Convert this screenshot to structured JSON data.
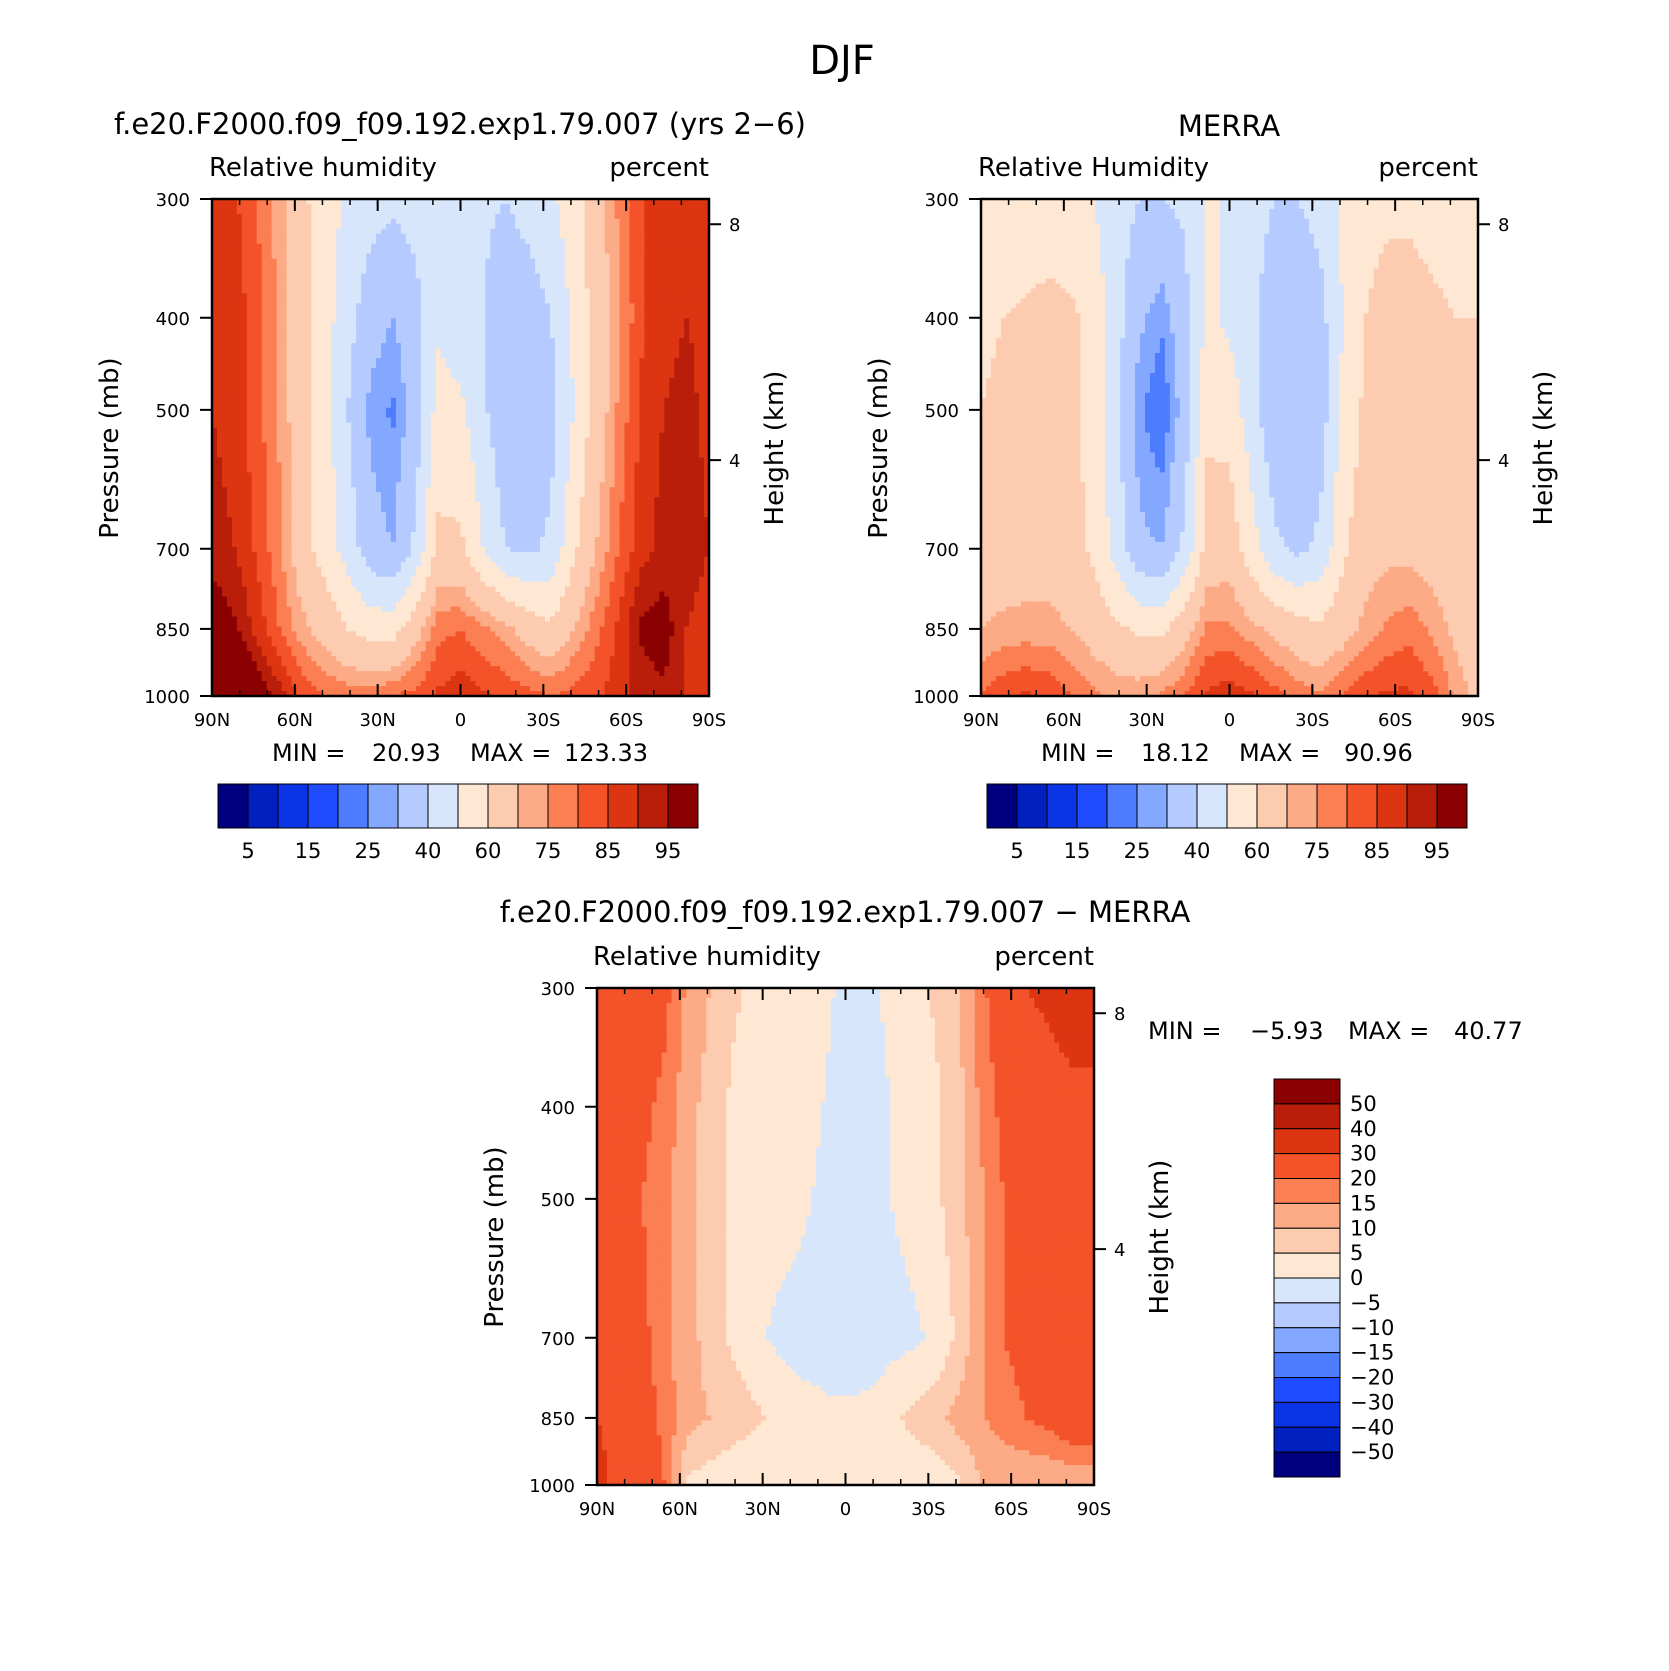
{
  "figure_title": "DJF",
  "chart_data": [
    {
      "type": "heatmap",
      "title": "f.e20.F2000.f09_f09.192.exp1.79.007 (yrs 2−6)",
      "variable": "Relative humidity",
      "units": "percent",
      "xlabel": "",
      "ylabel": "Pressure (mb)",
      "y2label": "Height (km)",
      "x_ticks": [
        "90N",
        "60N",
        "30N",
        "0",
        "30S",
        "60S",
        "90S"
      ],
      "y_ticks": [
        "300",
        "400",
        "500",
        "700",
        "850",
        "1000"
      ],
      "y2_ticks": [
        "8",
        "4"
      ],
      "xlim": [
        90,
        -90
      ],
      "ylim": [
        1000,
        300
      ],
      "y_scale": "log",
      "min_label": "MIN =",
      "min_value": "20.93",
      "max_label": "MAX =",
      "max_value": "123.33",
      "colorbar_labels": [
        "5",
        "15",
        "25",
        "40",
        "60",
        "75",
        "85",
        "95"
      ],
      "colorbar_colors": [
        "#00007f",
        "#0020c0",
        "#0a34e6",
        "#1f4cff",
        "#4d7cff",
        "#84a8ff",
        "#b5cbff",
        "#d7e6fb",
        "#fee8d4",
        "#fdccb0",
        "#fcab86",
        "#fb7f52",
        "#f4532a",
        "#dd3512",
        "#b91e0a",
        "#8b0000"
      ],
      "field": [
        {
          "level": 300,
          "values": [
            88,
            86,
            80,
            72,
            62,
            55,
            48,
            44,
            42,
            44,
            48,
            45,
            42,
            40,
            44,
            48,
            56,
            66,
            76,
            84,
            88,
            88,
            88
          ]
        },
        {
          "level": 400,
          "values": [
            90,
            88,
            82,
            74,
            64,
            54,
            44,
            34,
            30,
            36,
            48,
            44,
            40,
            32,
            34,
            40,
            52,
            64,
            74,
            84,
            88,
            90,
            88
          ]
        },
        {
          "level": 500,
          "values": [
            90,
            88,
            82,
            74,
            64,
            54,
            40,
            28,
            24,
            34,
            54,
            52,
            42,
            32,
            32,
            36,
            50,
            64,
            76,
            86,
            90,
            92,
            88
          ]
        },
        {
          "level": 700,
          "values": [
            92,
            90,
            84,
            76,
            64,
            56,
            46,
            34,
            30,
            42,
            62,
            62,
            50,
            40,
            38,
            42,
            58,
            70,
            80,
            88,
            92,
            94,
            90
          ]
        },
        {
          "level": 850,
          "values": [
            100,
            96,
            88,
            80,
            72,
            66,
            60,
            56,
            56,
            66,
            78,
            80,
            76,
            72,
            66,
            62,
            70,
            78,
            86,
            96,
            98,
            90,
            86
          ]
        },
        {
          "level": 1000,
          "values": [
            112,
            108,
            100,
            92,
            84,
            80,
            78,
            78,
            80,
            82,
            86,
            88,
            86,
            84,
            82,
            80,
            82,
            84,
            88,
            92,
            94,
            90,
            86
          ]
        }
      ]
    },
    {
      "type": "heatmap",
      "title": "MERRA",
      "variable": "Relative Humidity",
      "units": "percent",
      "xlabel": "",
      "ylabel": "Pressure (mb)",
      "y2label": "Height (km)",
      "x_ticks": [
        "90N",
        "60N",
        "30N",
        "0",
        "30S",
        "60S",
        "90S"
      ],
      "y_ticks": [
        "300",
        "400",
        "500",
        "700",
        "850",
        "1000"
      ],
      "y2_ticks": [
        "8",
        "4"
      ],
      "xlim": [
        90,
        -90
      ],
      "ylim": [
        1000,
        300
      ],
      "y_scale": "log",
      "min_label": "MIN =",
      "min_value": "18.12",
      "max_label": "MAX =",
      "max_value": "90.96",
      "colorbar_labels": [
        "5",
        "15",
        "25",
        "40",
        "60",
        "75",
        "85",
        "95"
      ],
      "colorbar_colors": [
        "#00007f",
        "#0020c0",
        "#0a34e6",
        "#1f4cff",
        "#4d7cff",
        "#84a8ff",
        "#b5cbff",
        "#d7e6fb",
        "#fee8d4",
        "#fdccb0",
        "#fcab86",
        "#fb7f52",
        "#f4532a",
        "#dd3512",
        "#b91e0a",
        "#8b0000"
      ],
      "field": [
        {
          "level": 300,
          "values": [
            52,
            52,
            52,
            52,
            52,
            50,
            44,
            40,
            40,
            42,
            50,
            50,
            44,
            40,
            40,
            44,
            52,
            56,
            58,
            58,
            56,
            56,
            56
          ]
        },
        {
          "level": 400,
          "values": [
            58,
            60,
            62,
            64,
            62,
            56,
            44,
            32,
            26,
            36,
            52,
            48,
            42,
            34,
            30,
            36,
            50,
            60,
            64,
            64,
            62,
            60,
            60
          ]
        },
        {
          "level": 500,
          "values": [
            60,
            62,
            64,
            64,
            62,
            56,
            42,
            26,
            20,
            34,
            58,
            56,
            44,
            32,
            30,
            34,
            52,
            62,
            66,
            66,
            64,
            62,
            62
          ]
        },
        {
          "level": 700,
          "values": [
            62,
            64,
            66,
            66,
            64,
            58,
            46,
            32,
            30,
            42,
            64,
            66,
            54,
            42,
            38,
            42,
            58,
            66,
            68,
            68,
            66,
            64,
            64
          ]
        },
        {
          "level": 850,
          "values": [
            70,
            72,
            72,
            72,
            70,
            66,
            62,
            58,
            58,
            66,
            76,
            76,
            72,
            68,
            64,
            62,
            66,
            72,
            76,
            78,
            74,
            68,
            64
          ]
        },
        {
          "level": 1000,
          "values": [
            80,
            84,
            86,
            84,
            80,
            76,
            74,
            74,
            76,
            80,
            86,
            88,
            86,
            82,
            78,
            76,
            80,
            84,
            86,
            86,
            82,
            74,
            68
          ]
        }
      ]
    },
    {
      "type": "heatmap",
      "title": "f.e20.F2000.f09_f09.192.exp1.79.007 − MERRA",
      "variable": "Relative humidity",
      "units": "percent",
      "xlabel": "",
      "ylabel": "Pressure (mb)",
      "y2label": "Height (km)",
      "x_ticks": [
        "90N",
        "60N",
        "30N",
        "0",
        "30S",
        "60S",
        "90S"
      ],
      "y_ticks": [
        "300",
        "400",
        "500",
        "700",
        "850",
        "1000"
      ],
      "y2_ticks": [
        "8",
        "4"
      ],
      "xlim": [
        90,
        -90
      ],
      "ylim": [
        1000,
        300
      ],
      "y_scale": "log",
      "min_label": "MIN =",
      "min_value": "−5.93",
      "max_label": "MAX =",
      "max_value": "40.77",
      "colorbar_labels": [
        "50",
        "40",
        "30",
        "20",
        "15",
        "10",
        "5",
        "0",
        "−5",
        "−10",
        "−15",
        "−20",
        "−30",
        "−40",
        "−50"
      ],
      "colorbar_colors": [
        "#8b0000",
        "#b91e0a",
        "#dd3512",
        "#f4532a",
        "#fb7f52",
        "#fcab86",
        "#fdccb0",
        "#fee8d4",
        "#d7e6fb",
        "#b5cbff",
        "#84a8ff",
        "#4d7cff",
        "#1f4cff",
        "#0a34e6",
        "#0020c0",
        "#00007f"
      ],
      "field": [
        {
          "level": 300,
          "values": [
            30,
            28,
            26,
            22,
            14,
            10,
            6,
            4,
            3,
            2,
            1,
            -1,
            -1,
            1,
            2,
            6,
            10,
            18,
            26,
            30,
            32,
            34,
            34
          ]
        },
        {
          "level": 400,
          "values": [
            28,
            26,
            22,
            18,
            12,
            8,
            4,
            2,
            2,
            2,
            0,
            -2,
            -2,
            0,
            2,
            4,
            8,
            16,
            22,
            24,
            26,
            28,
            28
          ]
        },
        {
          "level": 500,
          "values": [
            26,
            24,
            20,
            16,
            12,
            8,
            4,
            2,
            2,
            1,
            -1,
            -2,
            -2,
            0,
            2,
            4,
            8,
            14,
            20,
            22,
            24,
            26,
            26
          ]
        },
        {
          "level": 700,
          "values": [
            28,
            26,
            22,
            16,
            12,
            8,
            4,
            1,
            -1,
            -2,
            -2,
            -3,
            -4,
            -2,
            -1,
            1,
            6,
            14,
            20,
            22,
            24,
            28,
            28
          ]
        },
        {
          "level": 850,
          "values": [
            30,
            28,
            24,
            18,
            12,
            10,
            8,
            6,
            4,
            2,
            1,
            1,
            2,
            4,
            6,
            8,
            12,
            14,
            18,
            20,
            22,
            26,
            26
          ]
        },
        {
          "level": 1000,
          "values": [
            32,
            28,
            26,
            20,
            4,
            2,
            1,
            0,
            1,
            2,
            3,
            3,
            3,
            3,
            2,
            2,
            4,
            10,
            10,
            10,
            10,
            10,
            10
          ]
        }
      ]
    }
  ]
}
